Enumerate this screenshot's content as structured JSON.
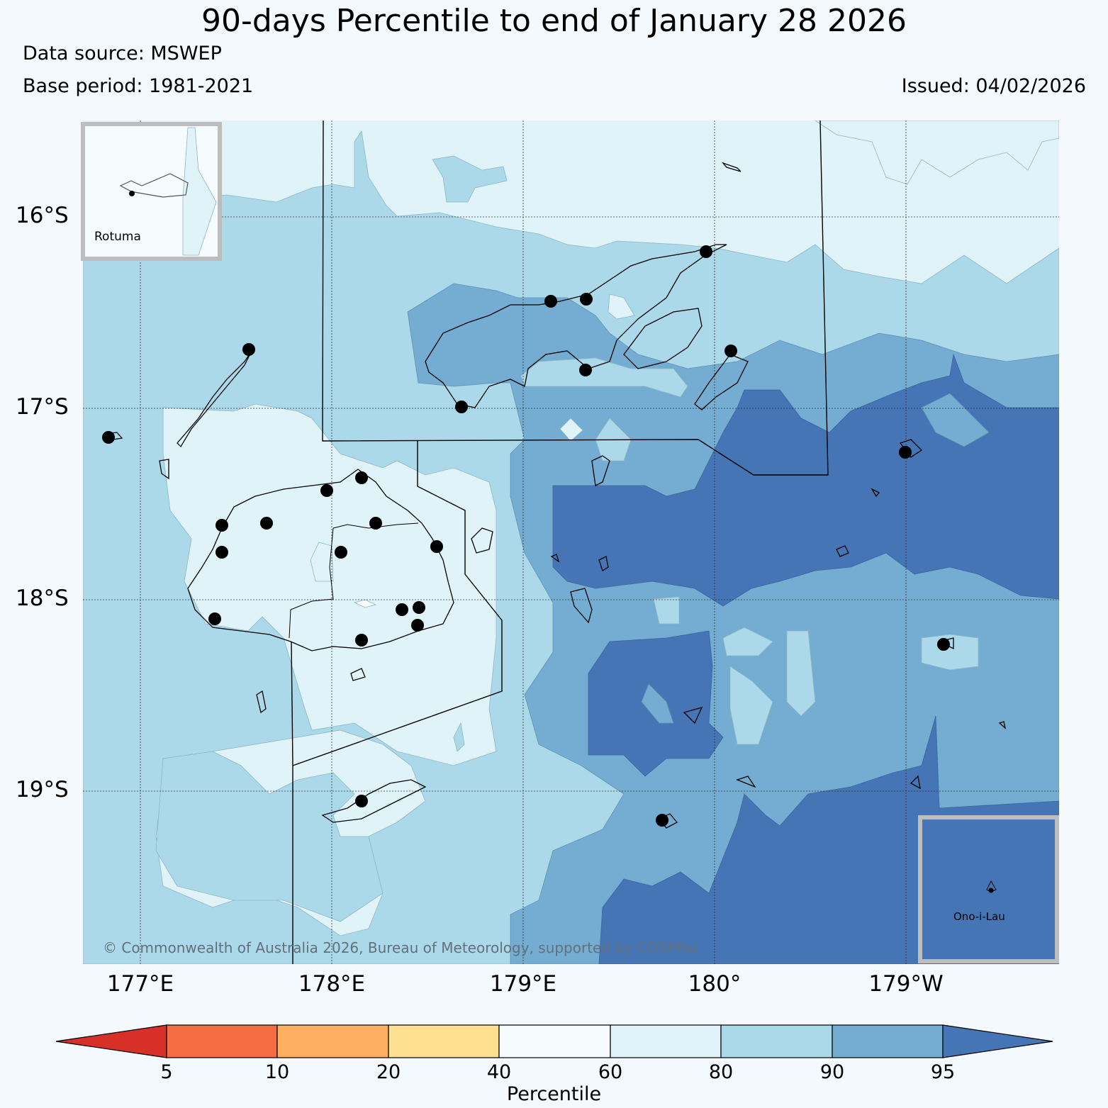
{
  "header": {
    "title": "90-days Percentile to end of January 28 2026",
    "data_source": "Data source: MSWEP",
    "base_period": "Base period: 1981-2021",
    "issued": "Issued: 04/02/2026"
  },
  "axes": {
    "lat_labels": [
      "16°S",
      "17°S",
      "18°S",
      "19°S"
    ],
    "lon_labels": [
      "177°E",
      "178°E",
      "179°E",
      "180°",
      "179°W"
    ]
  },
  "insets": {
    "rotuma": "Rotuma",
    "ono_i_lau": "Ono-i-Lau"
  },
  "copyright": "© Commonwealth of Australia 2026, Bureau of Meteorology, supported by COSPPac",
  "colorbar": {
    "title": "Percentile",
    "ticks": [
      "5",
      "10",
      "20",
      "40",
      "60",
      "80",
      "90",
      "95"
    ],
    "colors": [
      "#d73027",
      "#f46d43",
      "#fdae61",
      "#fee090",
      "#f6fbfd",
      "#e0f3f8",
      "#abd9e9",
      "#74add1",
      "#4575b4"
    ]
  },
  "colors": {
    "background": "#f3f9fc",
    "p60_80": "#e0f3f8",
    "p80_90": "#abd9e9",
    "p90_95": "#74add1",
    "p95_plus": "#4575b4",
    "inset_border": "#bdbdbd"
  }
}
